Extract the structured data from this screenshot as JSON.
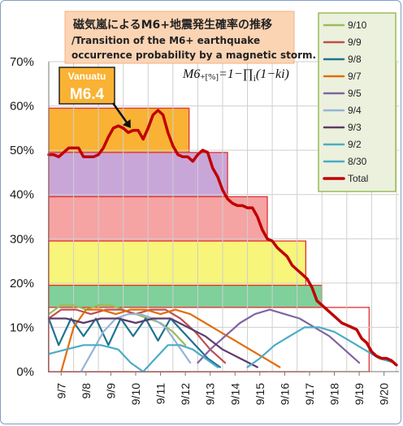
{
  "chart_data": {
    "type": "line",
    "title": "磁気嵐によるM6+地震発生確率の推移",
    "subtitle_lines": [
      "/Transition of the M6+ earthquake",
      "occurrence probability by a magnetic storm."
    ],
    "formula": {
      "lhs": "M6",
      "lhs_sub": "+[%]",
      "rhs": "=1−∏",
      "prod_sub": "i",
      "rhs_tail": "(1−ki)"
    },
    "annotation": {
      "line1": "Vanuatu",
      "line2": "M6.4",
      "x": 9.8,
      "y": 55
    },
    "ylim": [
      0,
      70
    ],
    "yticks": [
      "0%",
      "10%",
      "20%",
      "30%",
      "40%",
      "50%",
      "60%",
      "70%"
    ],
    "xlim": [
      6.5,
      20.6
    ],
    "xticks": [
      "9/7",
      "9/8",
      "9/9",
      "9/10",
      "9/11",
      "9/12",
      "9/13",
      "9/14",
      "9/15",
      "9/16",
      "9/17",
      "9/18",
      "9/19",
      "9/20"
    ],
    "grid": true,
    "legend_position": "right",
    "legend": [
      "9/10",
      "9/9",
      "9/8",
      "9/7",
      "9/5",
      "9/4",
      "9/3",
      "9/2",
      "8/30",
      "Total"
    ],
    "bands": [
      {
        "x0": 6.5,
        "x1": 12.15,
        "y": 59.5,
        "color": "#f9b233"
      },
      {
        "x0": 6.5,
        "x1": 13.7,
        "y": 49.5,
        "color": "#c9a6d8"
      },
      {
        "x0": 6.5,
        "x1": 15.3,
        "y": 39.5,
        "color": "#f6a3a3"
      },
      {
        "x0": 6.5,
        "x1": 16.85,
        "y": 29.5,
        "color": "#f7f57a"
      },
      {
        "x0": 6.5,
        "x1": 17.5,
        "y": 19.5,
        "color": "#7fd09a"
      },
      {
        "x0": 6.5,
        "x1": 19.4,
        "y": 14.5,
        "color": "#ffffff"
      }
    ],
    "series": [
      {
        "name": "9/10",
        "color": "#9bbb59",
        "x": [
          6.5,
          7.0,
          7.5,
          8.0,
          8.5,
          9.0,
          9.5,
          10.0,
          10.5,
          11.0,
          11.5,
          12.0
        ],
        "values": [
          13,
          15,
          15,
          14,
          15,
          15,
          14,
          13,
          12,
          11,
          9,
          6
        ]
      },
      {
        "name": "9/9",
        "color": "#c0504d",
        "x": [
          6.5,
          7.0,
          7.6,
          8.2,
          8.8,
          9.4,
          10.0,
          10.6,
          11.2,
          11.8,
          12.4,
          13.0,
          13.6
        ],
        "values": [
          12,
          14,
          14,
          13,
          14,
          14,
          13,
          14,
          14,
          12,
          9,
          5,
          2
        ]
      },
      {
        "name": "9/8",
        "color": "#1f7391",
        "x": [
          6.5,
          6.9,
          7.4,
          7.9,
          8.4,
          8.9,
          9.4,
          9.9,
          10.4,
          10.9,
          11.4,
          11.9,
          12.4,
          12.9,
          13.4
        ],
        "values": [
          12,
          6,
          12,
          8,
          12,
          6,
          12,
          8,
          12,
          7,
          12,
          9,
          6,
          3,
          1
        ]
      },
      {
        "name": "9/7",
        "color": "#e46c0a",
        "x": [
          7.0,
          7.5,
          8.0,
          8.6,
          9.2,
          9.8,
          10.4,
          11.0,
          11.6,
          12.2,
          12.8,
          13.4,
          14.0,
          14.6,
          15.2,
          15.8
        ],
        "values": [
          0,
          10,
          14,
          14,
          13,
          14,
          14,
          13,
          14,
          13,
          11,
          9,
          7,
          5,
          3,
          1
        ]
      },
      {
        "name": "9/5",
        "color": "#8064a2",
        "x": [
          12.5,
          13.0,
          13.6,
          14.2,
          14.8,
          15.4,
          16.0,
          16.6,
          17.2,
          17.8,
          18.4,
          19.0
        ],
        "values": [
          2,
          5,
          8,
          11,
          13,
          14,
          13,
          12,
          10,
          8,
          5,
          2
        ]
      },
      {
        "name": "9/4",
        "color": "#95b3d7",
        "x": [
          7.8,
          8.2,
          8.7,
          9.2,
          9.7,
          10.2,
          10.7,
          11.2,
          11.7,
          12.2
        ],
        "values": [
          0,
          4,
          9,
          12,
          13,
          13,
          12,
          10,
          6,
          2
        ]
      },
      {
        "name": "9/3",
        "color": "#5d3a6b",
        "x": [
          6.5,
          7.2,
          7.9,
          8.6,
          9.3,
          10.0,
          10.7,
          11.4,
          12.1,
          12.8,
          13.5,
          14.2,
          14.9
        ],
        "values": [
          12,
          12,
          11,
          12,
          12,
          11,
          12,
          12,
          10,
          8,
          5,
          3,
          1
        ]
      },
      {
        "name": "9/2",
        "color": "#4bacc6",
        "x": [
          6.5,
          7.2,
          7.9,
          8.6,
          9.3,
          9.8,
          10.3,
          10.8,
          11.3,
          11.8,
          12.3,
          12.8,
          13.3
        ],
        "values": [
          4,
          5,
          6,
          6,
          5,
          2,
          0,
          3,
          6,
          6,
          5,
          3,
          1
        ]
      },
      {
        "name": "8/30",
        "color": "#4bacc6",
        "x": [
          14.5,
          15.0,
          15.6,
          16.2,
          16.8,
          17.4,
          18.0,
          18.6,
          19.2,
          19.8,
          20.4
        ],
        "values": [
          1,
          3,
          6,
          8,
          10,
          10,
          9,
          7,
          5,
          3,
          2
        ]
      },
      {
        "name": "Total",
        "color": "#c00000",
        "x": [
          6.5,
          6.7,
          6.9,
          7.1,
          7.3,
          7.5,
          7.7,
          7.9,
          8.1,
          8.3,
          8.5,
          8.7,
          8.9,
          9.1,
          9.3,
          9.5,
          9.7,
          9.9,
          10.1,
          10.3,
          10.5,
          10.7,
          10.9,
          11.1,
          11.3,
          11.5,
          11.7,
          11.9,
          12.1,
          12.3,
          12.5,
          12.7,
          12.9,
          13.1,
          13.3,
          13.5,
          13.7,
          13.9,
          14.1,
          14.3,
          14.5,
          14.7,
          14.9,
          15.1,
          15.3,
          15.5,
          15.7,
          15.9,
          16.1,
          16.3,
          16.5,
          16.7,
          16.9,
          17.1,
          17.3,
          17.5,
          17.7,
          17.9,
          18.1,
          18.3,
          18.5,
          18.7,
          18.9,
          19.1,
          19.3,
          19.5,
          19.7,
          19.9,
          20.1,
          20.3,
          20.5
        ],
        "values": [
          49,
          49,
          48.5,
          49.5,
          50.5,
          50.5,
          50.5,
          48.5,
          48.5,
          48.5,
          49,
          50.5,
          53,
          55,
          55.5,
          55,
          54,
          54.5,
          54.5,
          52.5,
          55,
          58,
          59,
          58,
          54,
          51,
          49,
          48.5,
          48.5,
          47.5,
          49,
          50,
          49.5,
          46,
          44,
          41,
          39,
          38,
          37.5,
          37.5,
          37,
          37,
          35,
          32,
          30,
          29.5,
          28,
          27,
          26,
          24,
          23,
          22,
          21,
          19,
          16,
          15,
          14,
          13,
          12,
          11,
          10.5,
          10,
          9.5,
          7.5,
          6.5,
          4.5,
          3.5,
          3,
          3,
          2.5,
          1.5
        ]
      }
    ]
  }
}
